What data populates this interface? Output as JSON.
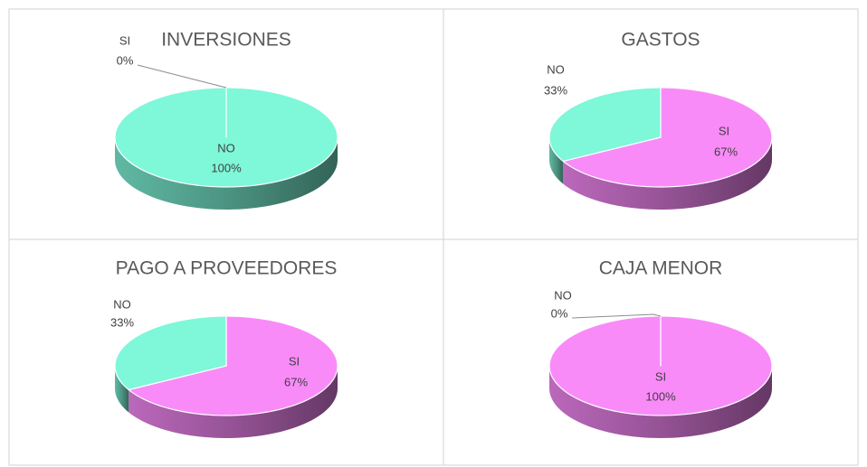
{
  "chart_data": [
    {
      "type": "pie3d",
      "title": "INVERSIONES",
      "categories": [
        "SI",
        "NO"
      ],
      "values": [
        0,
        100
      ],
      "value_labels": [
        "0%",
        "100%"
      ],
      "colors": [
        "#f98bf9",
        "#7ff7d9"
      ]
    },
    {
      "type": "pie3d",
      "title": "GASTOS",
      "categories": [
        "SI",
        "NO"
      ],
      "values": [
        67,
        33
      ],
      "value_labels": [
        "67%",
        "33%"
      ],
      "colors": [
        "#f98bf9",
        "#7ff7d9"
      ]
    },
    {
      "type": "pie3d",
      "title": "PAGO A PROVEEDORES",
      "categories": [
        "SI",
        "NO"
      ],
      "values": [
        67,
        33
      ],
      "value_labels": [
        "67%",
        "33%"
      ],
      "colors": [
        "#f98bf9",
        "#7ff7d9"
      ]
    },
    {
      "type": "pie3d",
      "title": "CAJA MENOR",
      "categories": [
        "SI",
        "NO"
      ],
      "values": [
        100,
        0
      ],
      "value_labels": [
        "100%",
        "0%"
      ],
      "colors": [
        "#f98bf9",
        "#7ff7d9"
      ]
    }
  ]
}
